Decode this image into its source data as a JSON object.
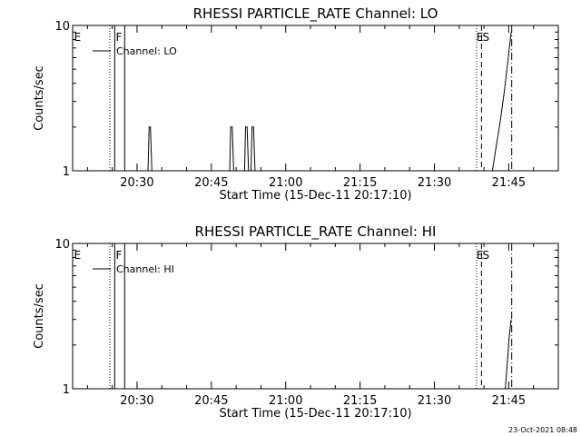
{
  "footer": {
    "timestamp": "23-Oct-2021 08:48"
  },
  "chart_data": [
    {
      "type": "line",
      "title": "RHESSI PARTICLE_RATE Channel: LO",
      "xlabel": "Start Time (15-Dec-11 20:17:10)",
      "ylabel": "Counts/sec",
      "xscale": "minutes since 20:17:10",
      "xlim": [
        0,
        98
      ],
      "ylim": [
        1,
        10
      ],
      "yscale": "log",
      "xticks": [
        {
          "v": 13,
          "label": "20:30"
        },
        {
          "v": 28,
          "label": "20:45"
        },
        {
          "v": 43,
          "label": "21:00"
        },
        {
          "v": 58,
          "label": "21:15"
        },
        {
          "v": 73,
          "label": "21:30"
        },
        {
          "v": 88,
          "label": "21:45"
        }
      ],
      "yticks": [
        {
          "v": 1,
          "label": "1"
        },
        {
          "v": 10,
          "label": "10"
        }
      ],
      "legend": {
        "placement": "top-left",
        "entries": [
          "Channel: LO"
        ]
      },
      "series": [
        {
          "name": "Channel: LO",
          "x": [
            0,
            15.2,
            15.45,
            15.7,
            16.0,
            16.3,
            31.7,
            31.9,
            32.2,
            32.5,
            32.7,
            34.7,
            34.9,
            35.2,
            35.5,
            35.7,
            36.0,
            36.2,
            36.5,
            36.8,
            37.0,
            84.7,
            85.5,
            86.3,
            87.1,
            87.9,
            88.5
          ],
          "y": [
            1,
            1,
            2,
            2,
            1,
            1,
            1,
            2,
            2,
            1,
            1,
            1,
            2,
            2,
            1,
            1,
            1,
            2,
            2,
            1,
            1,
            1,
            1.5,
            2.2,
            3.5,
            6,
            9
          ]
        }
      ],
      "annotations": [
        {
          "x": 7.5,
          "label": "",
          "style": "dotted"
        },
        {
          "x": 8.5,
          "label": "",
          "style": "solid"
        },
        {
          "x": 10.5,
          "label": "",
          "style": "solid"
        },
        {
          "x": 81.5,
          "label": "",
          "style": "dotted"
        },
        {
          "x": 82.5,
          "label": "",
          "style": "dashed"
        },
        {
          "x": 88.6,
          "label": "",
          "style": "dashdot"
        }
      ],
      "marker_labels": [
        {
          "x": 0.3,
          "label": "E"
        },
        {
          "x": 8.7,
          "label": "F"
        },
        {
          "x": 81.5,
          "label": "E"
        },
        {
          "x": 82.7,
          "label": "S"
        }
      ]
    },
    {
      "type": "line",
      "title": "RHESSI PARTICLE_RATE Channel: HI",
      "xlabel": "Start Time (15-Dec-11 20:17:10)",
      "ylabel": "Counts/sec",
      "xscale": "minutes since 20:17:10",
      "xlim": [
        0,
        98
      ],
      "ylim": [
        1,
        10
      ],
      "yscale": "log",
      "xticks": [
        {
          "v": 13,
          "label": "20:30"
        },
        {
          "v": 28,
          "label": "20:45"
        },
        {
          "v": 43,
          "label": "21:00"
        },
        {
          "v": 58,
          "label": "21:15"
        },
        {
          "v": 73,
          "label": "21:30"
        },
        {
          "v": 88,
          "label": "21:45"
        }
      ],
      "yticks": [
        {
          "v": 1,
          "label": "1"
        },
        {
          "v": 10,
          "label": "10"
        }
      ],
      "legend": {
        "placement": "top-left",
        "entries": [
          "Channel: HI"
        ]
      },
      "series": [
        {
          "name": "Channel: HI",
          "x": [
            0,
            87.3,
            87.7,
            88.1,
            88.5
          ],
          "y": [
            1,
            1,
            1.5,
            2.3,
            3
          ]
        }
      ],
      "annotations": [
        {
          "x": 7.5,
          "label": "",
          "style": "dotted"
        },
        {
          "x": 8.5,
          "label": "",
          "style": "solid"
        },
        {
          "x": 10.5,
          "label": "",
          "style": "solid"
        },
        {
          "x": 81.5,
          "label": "",
          "style": "dotted"
        },
        {
          "x": 82.5,
          "label": "",
          "style": "dashed"
        },
        {
          "x": 88.6,
          "label": "",
          "style": "dashdot"
        }
      ],
      "marker_labels": [
        {
          "x": 0.3,
          "label": "E"
        },
        {
          "x": 8.7,
          "label": "F"
        },
        {
          "x": 81.5,
          "label": "E"
        },
        {
          "x": 82.7,
          "label": "S"
        }
      ]
    }
  ]
}
